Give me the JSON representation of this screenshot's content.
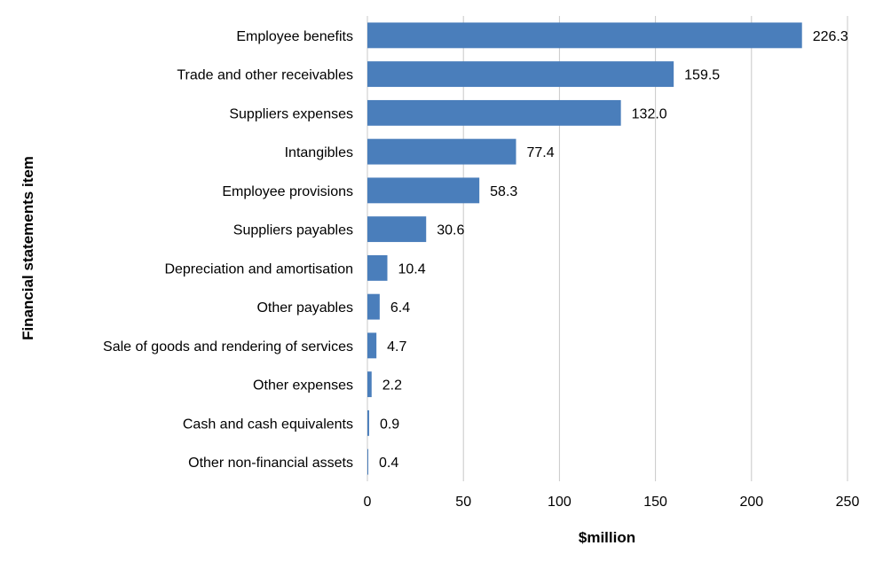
{
  "chart_data": {
    "type": "bar",
    "orientation": "horizontal",
    "title": "",
    "xlabel": "$million",
    "ylabel": "Financial statements item",
    "xlim": [
      0,
      250
    ],
    "xticks": [
      0,
      50,
      100,
      150,
      200,
      250
    ],
    "grid": "vertical",
    "legend": "none",
    "bar_color": "#4A7EBB",
    "grid_color": "#C8C8C8",
    "categories": [
      "Employee benefits",
      "Trade and other receivables",
      "Suppliers expenses",
      "Intangibles",
      "Employee provisions",
      "Suppliers payables",
      "Depreciation and amortisation",
      "Other payables",
      "Sale of goods and rendering of services",
      "Other expenses",
      "Cash and cash equivalents",
      "Other non-financial assets"
    ],
    "values": [
      226.3,
      159.5,
      132.0,
      77.4,
      58.3,
      30.6,
      10.4,
      6.4,
      4.7,
      2.2,
      0.9,
      0.4
    ],
    "data_labels": [
      "226.3",
      "159.5",
      "132.0",
      "77.4",
      "58.3",
      "30.6",
      "10.4",
      "6.4",
      "4.7",
      "2.2",
      "0.9",
      "0.4"
    ]
  }
}
